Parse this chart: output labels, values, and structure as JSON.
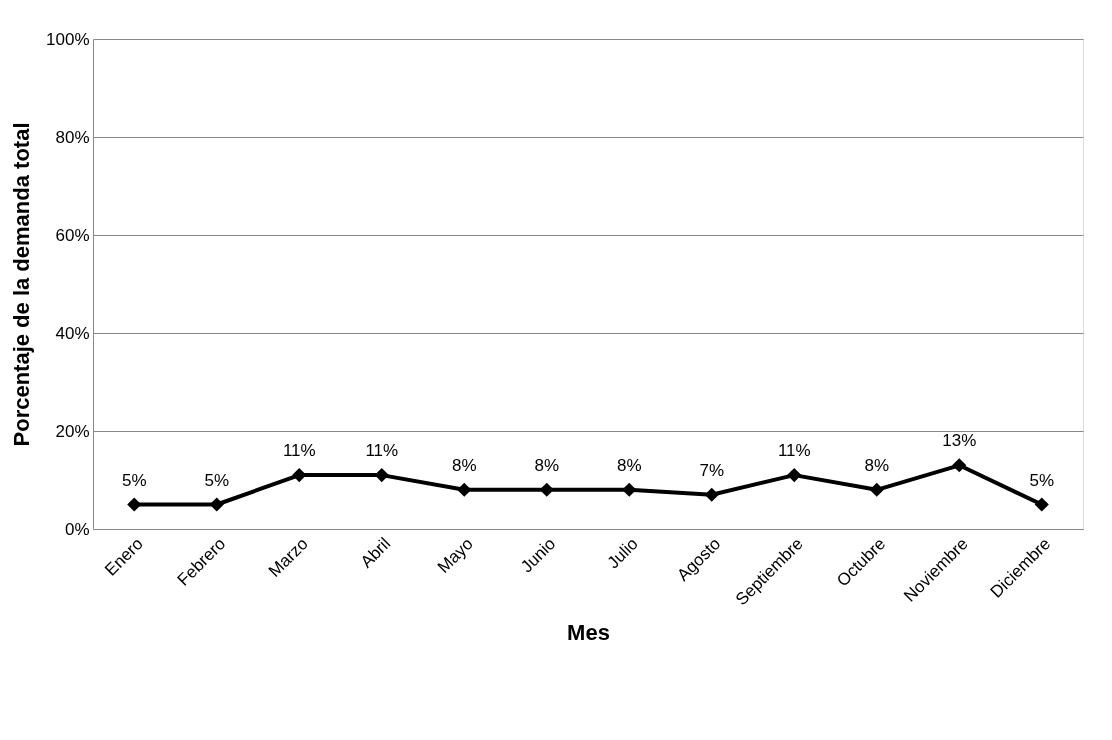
{
  "chart_data": {
    "type": "line",
    "xlabel": "Mes",
    "ylabel": "Porcentaje de la demanda total",
    "categories": [
      "Enero",
      "Febrero",
      "Marzo",
      "Abril",
      "Mayo",
      "Junio",
      "Julio",
      "Agosto",
      "Septiembre",
      "Octubre",
      "Noviembre",
      "Diciembre"
    ],
    "series": [
      {
        "color": "#000000",
        "values": [
          5,
          5,
          11,
          11,
          8,
          8,
          8,
          7,
          11,
          8,
          13,
          5
        ]
      }
    ],
    "value_labels": [
      "5%",
      "5%",
      "11%",
      "11%",
      "8%",
      "8%",
      "8%",
      "7%",
      "11%",
      "8%",
      "13%",
      "5%"
    ],
    "ylim": [
      0,
      100
    ],
    "yticks": [
      {
        "value": 0,
        "label": "0%"
      },
      {
        "value": 20,
        "label": "20%"
      },
      {
        "value": 40,
        "label": "40%"
      },
      {
        "value": 60,
        "label": "60%"
      },
      {
        "value": 80,
        "label": "80%"
      },
      {
        "value": 100,
        "label": "100%"
      }
    ],
    "grid": "y",
    "marker": "diamond",
    "line_style": "solid"
  }
}
